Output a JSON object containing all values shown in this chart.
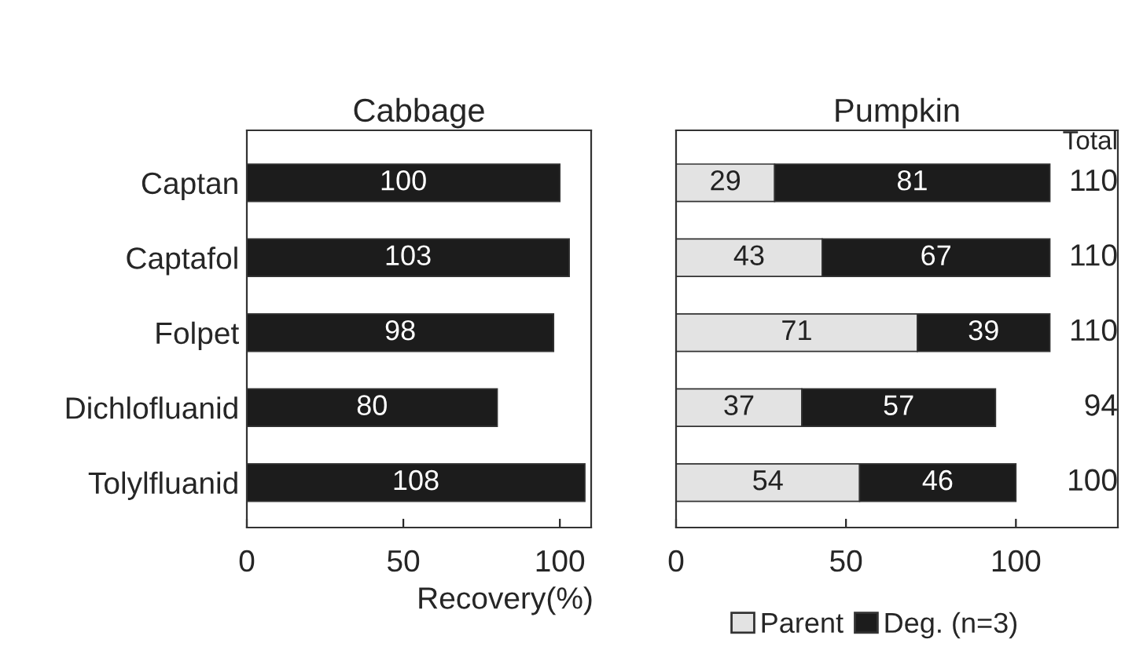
{
  "chart_data": [
    {
      "type": "bar",
      "title": "Cabbage",
      "orientation": "horizontal",
      "categories": [
        "Captan",
        "Captafol",
        "Folpet",
        "Dichlofluanid",
        "Tolylfluanid"
      ],
      "xlabel": "Recovery(%)",
      "series": [
        {
          "color": "#1c1c1c",
          "values": [
            100,
            103,
            98,
            80,
            108
          ]
        }
      ],
      "xlim": [
        0,
        110
      ],
      "xticks": [
        0,
        50,
        100
      ],
      "data_labels": true,
      "grid": false,
      "legend": false
    },
    {
      "type": "bar",
      "title": "Pumpkin",
      "orientation": "horizontal",
      "stacked": true,
      "categories": [
        null,
        null,
        null,
        null,
        null
      ],
      "tick_labels": "x",
      "series": [
        {
          "name": "Parent",
          "color": "#e3e3e3",
          "values": [
            29,
            43,
            71,
            37,
            54
          ]
        },
        {
          "name": "Deg. (n=3)",
          "color": "#1c1c1c",
          "values": [
            81,
            67,
            39,
            57,
            46
          ]
        }
      ],
      "totals": [
        "110",
        "110",
        "110",
        "94",
        "100"
      ],
      "annotations": [
        "Total"
      ],
      "xlim": [
        0,
        130
      ],
      "xticks": [
        0,
        50,
        100
      ],
      "data_labels": true,
      "grid": false,
      "legend": "bottom"
    }
  ]
}
